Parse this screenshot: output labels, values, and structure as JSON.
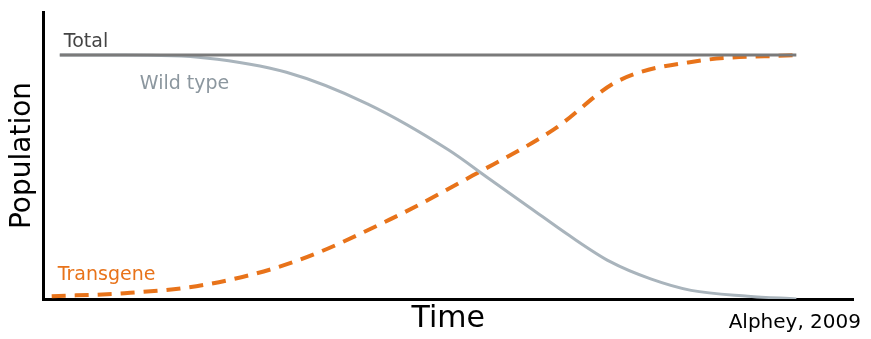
{
  "chart_data": {
    "type": "line",
    "x_label": "Time",
    "y_label": "Population",
    "source": "Alphey, 2009",
    "xlim": [
      0,
      100
    ],
    "ylim": [
      0,
      100
    ],
    "grid": false,
    "tick_labels": false,
    "series": [
      {
        "name": "Total",
        "color": "#7a7a7a",
        "line_style": "solid",
        "x": [
          2,
          93
        ],
        "values": [
          85,
          85
        ]
      },
      {
        "name": "Wild type",
        "color": "#a9b4bc",
        "line_style": "solid",
        "x": [
          2,
          10,
          20,
          30,
          40,
          50,
          55,
          60,
          65,
          70,
          75,
          80,
          87,
          93
        ],
        "values": [
          85,
          85,
          84,
          79,
          68,
          52,
          42,
          32,
          22,
          13,
          7,
          3,
          1,
          0
        ]
      },
      {
        "name": "Transgene",
        "color": "#e8731a",
        "line_style": "dashed",
        "x": [
          1,
          10,
          20,
          31,
          43,
          53,
          63,
          71,
          81,
          93
        ],
        "values": [
          1,
          2,
          5,
          13,
          28,
          43,
          59,
          76,
          83,
          85
        ]
      }
    ]
  }
}
